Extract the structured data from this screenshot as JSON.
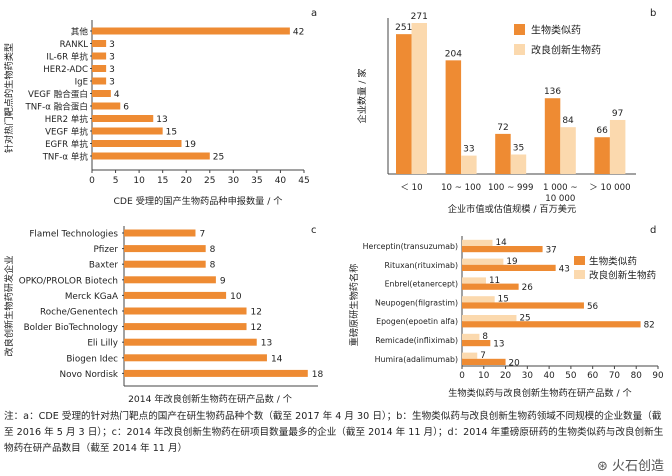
{
  "colors": {
    "orange": "#EE8B33",
    "beige": "#FBD9AE",
    "axis": "#444444"
  },
  "chart_data": [
    {
      "type": "bar",
      "orientation": "horizontal",
      "panel": "a",
      "ylabel": "针对热门靶点的生物药类型",
      "xlabel": "CDE 受理的国产生物药品种申报数量 / 个",
      "categories": [
        "其他",
        "RANKL",
        "IL-6R 单抗",
        "HER2-ADC",
        "IgE",
        "VEGF 融合蛋白",
        "TNF-α 融合蛋白",
        "HER2 单抗",
        "VEGF 单抗",
        "EGFR 单抗",
        "TNF-α 单抗"
      ],
      "values": [
        42,
        3,
        3,
        3,
        3,
        4,
        6,
        13,
        15,
        19,
        25
      ],
      "xticks": [
        0,
        5,
        10,
        15,
        20,
        25,
        30,
        35,
        40,
        45
      ],
      "xlim": [
        0,
        45
      ]
    },
    {
      "type": "bar",
      "orientation": "vertical",
      "panel": "b",
      "ylabel": "企业数量 / 家",
      "xlabel": "企业市值或估值规模 / 百万美元",
      "categories": [
        "＜ 10",
        "10 ~ 100",
        "100 ~ 999",
        "1 000 ~ 10 000",
        "＞ 10 000"
      ],
      "series": [
        {
          "name": "生物类似药",
          "values": [
            251,
            204,
            72,
            136,
            66
          ]
        },
        {
          "name": "改良创新生物药",
          "values": [
            271,
            33,
            35,
            84,
            97
          ]
        }
      ],
      "ylim": [
        0,
        280
      ],
      "legend": "top-right"
    },
    {
      "type": "bar",
      "orientation": "horizontal",
      "panel": "c",
      "ylabel": "改良创新生物药研发企业",
      "xlabel": "2014 年改良创新生物药在研产品数 / 个",
      "categories": [
        "Flamel Technologies",
        "Pfizer",
        "Baxter",
        "OPKO/PROLOR Biotech",
        "Merck KGaA",
        "Roche/Genentech",
        "Bolder BioTechnology",
        "Eli Lilly",
        "Biogen Idec",
        "Novo Nordisk"
      ],
      "values": [
        7,
        8,
        8,
        9,
        10,
        12,
        12,
        13,
        14,
        18
      ],
      "xlim": [
        0,
        19
      ]
    },
    {
      "type": "bar",
      "orientation": "horizontal",
      "panel": "d",
      "ylabel": "重磅原研生物药名称",
      "xlabel": "生物类似药与改良创新生物药在研产品数 / 个",
      "categories": [
        "Herceptin(transuzumab)",
        "Rituxan(rituximab)",
        "Enbrel(etanercept)",
        "Neupogen(filgrastim)",
        "Epogen(epoetin alfa)",
        "Remicade(infliximab)",
        "Humira(adalimumab)"
      ],
      "series": [
        {
          "name": "生物类似药",
          "values": [
            37,
            43,
            26,
            56,
            82,
            13,
            20
          ]
        },
        {
          "name": "改良创新生物药",
          "values": [
            14,
            19,
            11,
            15,
            25,
            8,
            7
          ]
        }
      ],
      "xticks": [
        0,
        10,
        20,
        30,
        40,
        50,
        60,
        70,
        80,
        90
      ],
      "xlim": [
        0,
        90
      ],
      "legend": "top-right"
    }
  ],
  "note": "注：a：CDE 受理的针对热门靶点的国产在研生物药品种个数（截至 2017 年 4 月 30 日）；b：生物类似药与改良创新生物药领域不同规模的企业数量（截至 2016 年 5 月 3 日）；c：2014 年改良创新生物药在研项目数量最多的企业（截至 2014 年 11 月）；d：2014 年重磅原研药的生物类似药与改良创新生物药在研产品数目（截至 2014 年 11 月）",
  "watermark": "火石创造"
}
